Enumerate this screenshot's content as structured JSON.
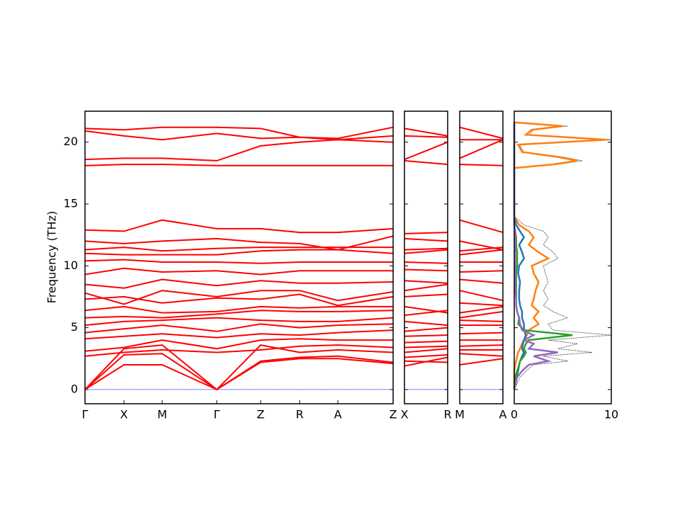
{
  "chart_data": [
    {
      "type": "line",
      "ylabel": "Frequency (THz)",
      "color": "#ff0000",
      "x": [
        0,
        0.55,
        1.09,
        1.86,
        2.48,
        3.03,
        3.57,
        4.35
      ],
      "xlim": [
        0,
        4.35
      ],
      "xticks": [
        {
          "value": 0,
          "label": "Γ"
        },
        {
          "value": 0.55,
          "label": "X"
        },
        {
          "value": 1.09,
          "label": "M"
        },
        {
          "value": 1.86,
          "label": "Γ"
        },
        {
          "value": 2.48,
          "label": "Z"
        },
        {
          "value": 3.03,
          "label": "R"
        },
        {
          "value": 3.57,
          "label": "A"
        },
        {
          "value": 4.35,
          "label": "Z"
        }
      ],
      "ylim": [
        -1.15,
        22.5
      ],
      "yticks": [
        0,
        5,
        10,
        15,
        20
      ],
      "series": [
        {
          "values": [
            0,
            2.0,
            2.0,
            0,
            2.2,
            2.5,
            2.5,
            2.1
          ]
        },
        {
          "values": [
            0,
            2.8,
            2.9,
            0,
            2.3,
            2.6,
            2.7,
            2.2
          ]
        },
        {
          "values": [
            0,
            3.3,
            3.6,
            0,
            3.6,
            3.0,
            3.2,
            3.0
          ]
        },
        {
          "values": [
            2.7,
            3.0,
            3.2,
            3.0,
            3.2,
            3.5,
            3.6,
            3.4
          ]
        },
        {
          "values": [
            3.1,
            3.4,
            4.0,
            3.3,
            4.0,
            4.1,
            4.0,
            4.0
          ]
        },
        {
          "values": [
            4.1,
            4.3,
            4.5,
            4.2,
            4.5,
            4.4,
            4.6,
            4.8
          ]
        },
        {
          "values": [
            4.6,
            4.9,
            5.2,
            4.7,
            5.3,
            5.0,
            5.2,
            5.3
          ]
        },
        {
          "values": [
            5.2,
            5.5,
            5.6,
            5.8,
            5.6,
            5.5,
            5.5,
            5.8
          ]
        },
        {
          "values": [
            5.8,
            5.9,
            5.8,
            6.1,
            6.4,
            6.3,
            6.3,
            6.4
          ]
        },
        {
          "values": [
            6.4,
            6.7,
            6.2,
            6.3,
            6.7,
            6.6,
            6.7,
            6.7
          ]
        },
        {
          "values": [
            7.3,
            7.5,
            7.0,
            7.4,
            7.3,
            7.7,
            6.8,
            7.5
          ]
        },
        {
          "values": [
            7.8,
            6.9,
            8.0,
            7.5,
            8.0,
            8.0,
            7.2,
            7.9
          ]
        },
        {
          "values": [
            8.5,
            8.2,
            8.9,
            8.4,
            8.8,
            8.6,
            8.6,
            8.7
          ]
        },
        {
          "values": [
            9.3,
            9.8,
            9.5,
            9.6,
            9.3,
            9.6,
            9.6,
            9.6
          ]
        },
        {
          "values": [
            10.4,
            10.5,
            10.3,
            10.3,
            10.2,
            10.3,
            10.3,
            10.3
          ]
        },
        {
          "values": [
            11.0,
            10.9,
            10.9,
            10.9,
            11.2,
            11.3,
            11.3,
            11.0
          ]
        },
        {
          "values": [
            11.3,
            11.5,
            11.2,
            11.4,
            11.5,
            11.5,
            11.5,
            11.5
          ]
        },
        {
          "values": [
            12.0,
            11.8,
            12.0,
            12.2,
            11.9,
            11.8,
            11.3,
            12.4
          ]
        },
        {
          "values": [
            12.9,
            12.8,
            13.7,
            13.0,
            13.0,
            12.7,
            12.7,
            13.0
          ]
        },
        {
          "values": [
            18.1,
            18.2,
            18.2,
            18.1,
            18.1,
            18.1,
            18.1,
            18.1
          ]
        },
        {
          "values": [
            18.6,
            18.7,
            18.7,
            18.5,
            19.7,
            20.0,
            20.2,
            20.0
          ]
        },
        {
          "values": [
            20.9,
            20.5,
            20.2,
            20.7,
            20.3,
            20.4,
            20.2,
            20.5
          ]
        },
        {
          "values": [
            21.1,
            21.0,
            21.2,
            21.2,
            21.1,
            20.4,
            20.3,
            21.2
          ]
        }
      ]
    },
    {
      "type": "line",
      "color": "#ff0000",
      "x": [
        0,
        0.61
      ],
      "xlim": [
        0,
        0.61
      ],
      "xticks": [
        {
          "value": 0,
          "label": "X"
        },
        {
          "value": 0.61,
          "label": "R"
        }
      ],
      "ylim": [
        -1.15,
        22.5
      ],
      "yticks": [
        0,
        5,
        10,
        15,
        20
      ],
      "series": [
        {
          "values": [
            1.9,
            2.6
          ]
        },
        {
          "values": [
            2.3,
            2.2
          ]
        },
        {
          "values": [
            2.6,
            2.8
          ]
        },
        {
          "values": [
            3.0,
            3.3
          ]
        },
        {
          "values": [
            3.4,
            3.5
          ]
        },
        {
          "values": [
            3.8,
            3.9
          ]
        },
        {
          "values": [
            4.3,
            4.4
          ]
        },
        {
          "values": [
            4.7,
            5.0
          ]
        },
        {
          "values": [
            5.5,
            5.2
          ]
        },
        {
          "values": [
            6.0,
            6.4
          ]
        },
        {
          "values": [
            6.7,
            6.2
          ]
        },
        {
          "values": [
            7.5,
            7.7
          ]
        },
        {
          "values": [
            8.0,
            8.5
          ]
        },
        {
          "values": [
            8.8,
            8.6
          ]
        },
        {
          "values": [
            9.7,
            9.6
          ]
        },
        {
          "values": [
            10.3,
            10.2
          ]
        },
        {
          "values": [
            11.0,
            11.3
          ]
        },
        {
          "values": [
            11.3,
            11.4
          ]
        },
        {
          "values": [
            12.2,
            12.0
          ]
        },
        {
          "values": [
            12.6,
            12.7
          ]
        },
        {
          "values": [
            18.5,
            18.2
          ]
        },
        {
          "values": [
            18.6,
            20.0
          ]
        },
        {
          "values": [
            20.5,
            20.4
          ]
        },
        {
          "values": [
            21.1,
            20.5
          ]
        }
      ]
    },
    {
      "type": "line",
      "color": "#ff0000",
      "x": [
        0,
        0.61
      ],
      "xlim": [
        0,
        0.61
      ],
      "xticks": [
        {
          "value": 0,
          "label": "M"
        },
        {
          "value": 0.61,
          "label": "A"
        }
      ],
      "ylim": [
        -1.15,
        22.5
      ],
      "yticks": [
        0,
        5,
        10,
        15,
        20
      ],
      "series": [
        {
          "values": [
            2.0,
            2.5
          ]
        },
        {
          "values": [
            2.9,
            2.7
          ]
        },
        {
          "values": [
            3.2,
            3.2
          ]
        },
        {
          "values": [
            3.5,
            3.6
          ]
        },
        {
          "values": [
            4.0,
            4.0
          ]
        },
        {
          "values": [
            4.5,
            4.6
          ]
        },
        {
          "values": [
            5.2,
            5.2
          ]
        },
        {
          "values": [
            5.6,
            5.5
          ]
        },
        {
          "values": [
            5.8,
            6.3
          ]
        },
        {
          "values": [
            6.2,
            6.7
          ]
        },
        {
          "values": [
            7.0,
            6.8
          ]
        },
        {
          "values": [
            8.0,
            7.2
          ]
        },
        {
          "values": [
            8.9,
            8.6
          ]
        },
        {
          "values": [
            9.5,
            9.6
          ]
        },
        {
          "values": [
            10.3,
            10.3
          ]
        },
        {
          "values": [
            10.9,
            11.3
          ]
        },
        {
          "values": [
            11.2,
            11.5
          ]
        },
        {
          "values": [
            12.0,
            11.3
          ]
        },
        {
          "values": [
            13.7,
            12.7
          ]
        },
        {
          "values": [
            18.2,
            18.1
          ]
        },
        {
          "values": [
            18.7,
            20.2
          ]
        },
        {
          "values": [
            20.2,
            20.2
          ]
        },
        {
          "values": [
            21.2,
            20.3
          ]
        }
      ]
    },
    {
      "type": "dos",
      "y": [
        0,
        1,
        1.5,
        2,
        2.3,
        2.7,
        3,
        3.3,
        3.7,
        4,
        4.4,
        4.8,
        5.3,
        5.8,
        6.3,
        6.8,
        7.3,
        8,
        8.7,
        9.4,
        10,
        10.6,
        11.1,
        11.7,
        12.3,
        12.8,
        13.3,
        14,
        17.9,
        18.2,
        18.5,
        18.8,
        19.2,
        19.8,
        20.2,
        20.6,
        21,
        21.3,
        21.6
      ],
      "xlim": [
        0,
        10
      ],
      "xticks": [
        0,
        10
      ],
      "ylim": [
        -1.15,
        22.5
      ],
      "yticks": [
        0,
        5,
        10,
        15,
        20
      ],
      "series": [
        {
          "color": "#000000",
          "dotted": true,
          "values": [
            0,
            0.6,
            1.2,
            2.0,
            5.5,
            3.0,
            8.0,
            4.5,
            6.5,
            3.5,
            10.0,
            4.0,
            3.5,
            5.5,
            4.0,
            3.0,
            3.5,
            3.0,
            3.5,
            3.2,
            3.0,
            4.5,
            4.0,
            3.0,
            3.5,
            3.0,
            1.0,
            0,
            0,
            4.5,
            7.0,
            5.0,
            1.0,
            0.5,
            10.0,
            1.5,
            2.0,
            5.5,
            0
          ]
        },
        {
          "color": "#ff7f0e",
          "values": [
            0,
            0,
            0,
            0.1,
            0.2,
            0.3,
            0.4,
            0.6,
            0.8,
            1.0,
            1.3,
            1.5,
            2.5,
            2.0,
            2.5,
            1.8,
            2.0,
            2.2,
            2.5,
            2.0,
            1.8,
            3.5,
            2.5,
            1.5,
            2.0,
            1.5,
            0.5,
            0,
            0,
            4.0,
            6.5,
            4.5,
            0.8,
            0.4,
            9.5,
            1.2,
            1.8,
            5.0,
            0
          ]
        },
        {
          "color": "#1f77b4",
          "values": [
            0,
            0.2,
            0.4,
            0.5,
            0.6,
            0.8,
            1.0,
            0.8,
            0.9,
            1.0,
            1.2,
            1.0,
            1.0,
            0.8,
            0.8,
            0.6,
            0.5,
            0.5,
            0.6,
            0.4,
            0.5,
            1.0,
            0.8,
            0.5,
            1.0,
            0.6,
            0.2,
            0,
            0,
            0,
            0,
            0,
            0,
            0,
            0,
            0,
            0,
            0,
            0
          ]
        },
        {
          "color": "#2ca02c",
          "values": [
            0,
            0.1,
            0.3,
            0.5,
            0.6,
            1.0,
            1.2,
            1.0,
            1.2,
            1.5,
            6.0,
            1.0,
            0.4,
            0.5,
            0.3,
            0.2,
            0.2,
            0.2,
            0.2,
            0.2,
            0.3,
            0.3,
            0.3,
            0.2,
            0.2,
            0.1,
            0,
            0,
            0,
            0,
            0,
            0,
            0,
            0,
            0,
            0,
            0,
            0,
            0
          ]
        },
        {
          "color": "#9467bd",
          "values": [
            0,
            0.3,
            0.8,
            1.5,
            3.5,
            2.0,
            4.5,
            1.5,
            2.0,
            1.0,
            2.0,
            0.8,
            0.6,
            0.5,
            0.3,
            0.2,
            0.2,
            0.1,
            0.1,
            0.1,
            0.1,
            0.1,
            0.1,
            0.1,
            0.1,
            0.1,
            0,
            0,
            0,
            0,
            0,
            0,
            0,
            0,
            0,
            0,
            0,
            0,
            0
          ]
        }
      ]
    }
  ]
}
